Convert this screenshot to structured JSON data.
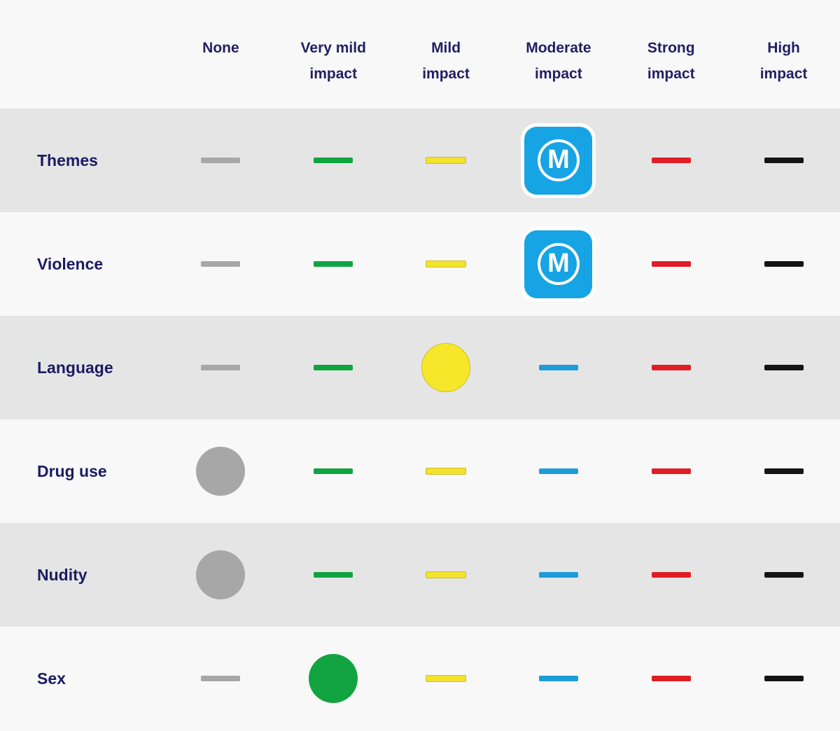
{
  "table": {
    "columns": [
      {
        "label": "None"
      },
      {
        "label": "Very mild impact"
      },
      {
        "label": "Mild impact"
      },
      {
        "label": "Moderate impact"
      },
      {
        "label": "Strong impact"
      },
      {
        "label": "High impact"
      }
    ],
    "rows": [
      {
        "label": "Themes",
        "cells": [
          {
            "shape": "dash",
            "name": "none-dash",
            "color": "#a7a7a7"
          },
          {
            "shape": "dash",
            "name": "very-mild-dash",
            "color": "#0fa441"
          },
          {
            "shape": "dash",
            "name": "mild-dash",
            "color": "#f2e32c",
            "border": "#cdbf25"
          },
          {
            "shape": "badge",
            "name": "rating-badge-m",
            "letter": "M",
            "color": "#16a4e4",
            "ring": true
          },
          {
            "shape": "dash",
            "name": "strong-dash",
            "color": "#e11d25"
          },
          {
            "shape": "dash",
            "name": "high-dash",
            "color": "#141414"
          }
        ]
      },
      {
        "label": "Violence",
        "cells": [
          {
            "shape": "dash",
            "name": "none-dash",
            "color": "#a7a7a7"
          },
          {
            "shape": "dash",
            "name": "very-mild-dash",
            "color": "#0fa441"
          },
          {
            "shape": "dash",
            "name": "mild-dash",
            "color": "#f2e32c",
            "border": "#cdbf25"
          },
          {
            "shape": "badge",
            "name": "rating-badge-m",
            "letter": "M",
            "color": "#16a4e4",
            "ring": true
          },
          {
            "shape": "dash",
            "name": "strong-dash",
            "color": "#e11d25"
          },
          {
            "shape": "dash",
            "name": "high-dash",
            "color": "#141414"
          }
        ]
      },
      {
        "label": "Language",
        "cells": [
          {
            "shape": "dash",
            "name": "none-dash",
            "color": "#a7a7a7"
          },
          {
            "shape": "dash",
            "name": "very-mild-dash",
            "color": "#0fa441"
          },
          {
            "shape": "circle",
            "name": "mild-selected-circle",
            "color": "#f7e72a",
            "border": "#cdbf25"
          },
          {
            "shape": "dash",
            "name": "moderate-dash",
            "color": "#1e9cd7"
          },
          {
            "shape": "dash",
            "name": "strong-dash",
            "color": "#e11d25"
          },
          {
            "shape": "dash",
            "name": "high-dash",
            "color": "#141414"
          }
        ]
      },
      {
        "label": "Drug use",
        "cells": [
          {
            "shape": "circle",
            "name": "none-selected-circle",
            "color": "#a7a7a7"
          },
          {
            "shape": "dash",
            "name": "very-mild-dash",
            "color": "#0fa441"
          },
          {
            "shape": "dash",
            "name": "mild-dash",
            "color": "#f2e32c",
            "border": "#cdbf25"
          },
          {
            "shape": "dash",
            "name": "moderate-dash",
            "color": "#1e9cd7"
          },
          {
            "shape": "dash",
            "name": "strong-dash",
            "color": "#e11d25"
          },
          {
            "shape": "dash",
            "name": "high-dash",
            "color": "#141414"
          }
        ]
      },
      {
        "label": "Nudity",
        "cells": [
          {
            "shape": "circle",
            "name": "none-selected-circle",
            "color": "#a7a7a7"
          },
          {
            "shape": "dash",
            "name": "very-mild-dash",
            "color": "#0fa441"
          },
          {
            "shape": "dash",
            "name": "mild-dash",
            "color": "#f2e32c",
            "border": "#cdbf25"
          },
          {
            "shape": "dash",
            "name": "moderate-dash",
            "color": "#1e9cd7"
          },
          {
            "shape": "dash",
            "name": "strong-dash",
            "color": "#e11d25"
          },
          {
            "shape": "dash",
            "name": "high-dash",
            "color": "#141414"
          }
        ]
      },
      {
        "label": "Sex",
        "cells": [
          {
            "shape": "dash",
            "name": "none-dash",
            "color": "#a7a7a7"
          },
          {
            "shape": "circle",
            "name": "very-mild-selected-circle",
            "color": "#12a440"
          },
          {
            "shape": "dash",
            "name": "mild-dash",
            "color": "#f2e32c",
            "border": "#cdbf25"
          },
          {
            "shape": "dash",
            "name": "moderate-dash",
            "color": "#1e9cd7"
          },
          {
            "shape": "dash",
            "name": "strong-dash",
            "color": "#e11d25"
          },
          {
            "shape": "dash",
            "name": "high-dash",
            "color": "#141414"
          }
        ]
      }
    ]
  },
  "colors": {
    "header_text": "#221e63",
    "row_label_text": "#1d1b62",
    "row_bg": "#f8f8f9",
    "row_alt_bg": "#e5e5e6",
    "badge_blue": "#16a4e4",
    "badge_letter": "#ffffff"
  }
}
